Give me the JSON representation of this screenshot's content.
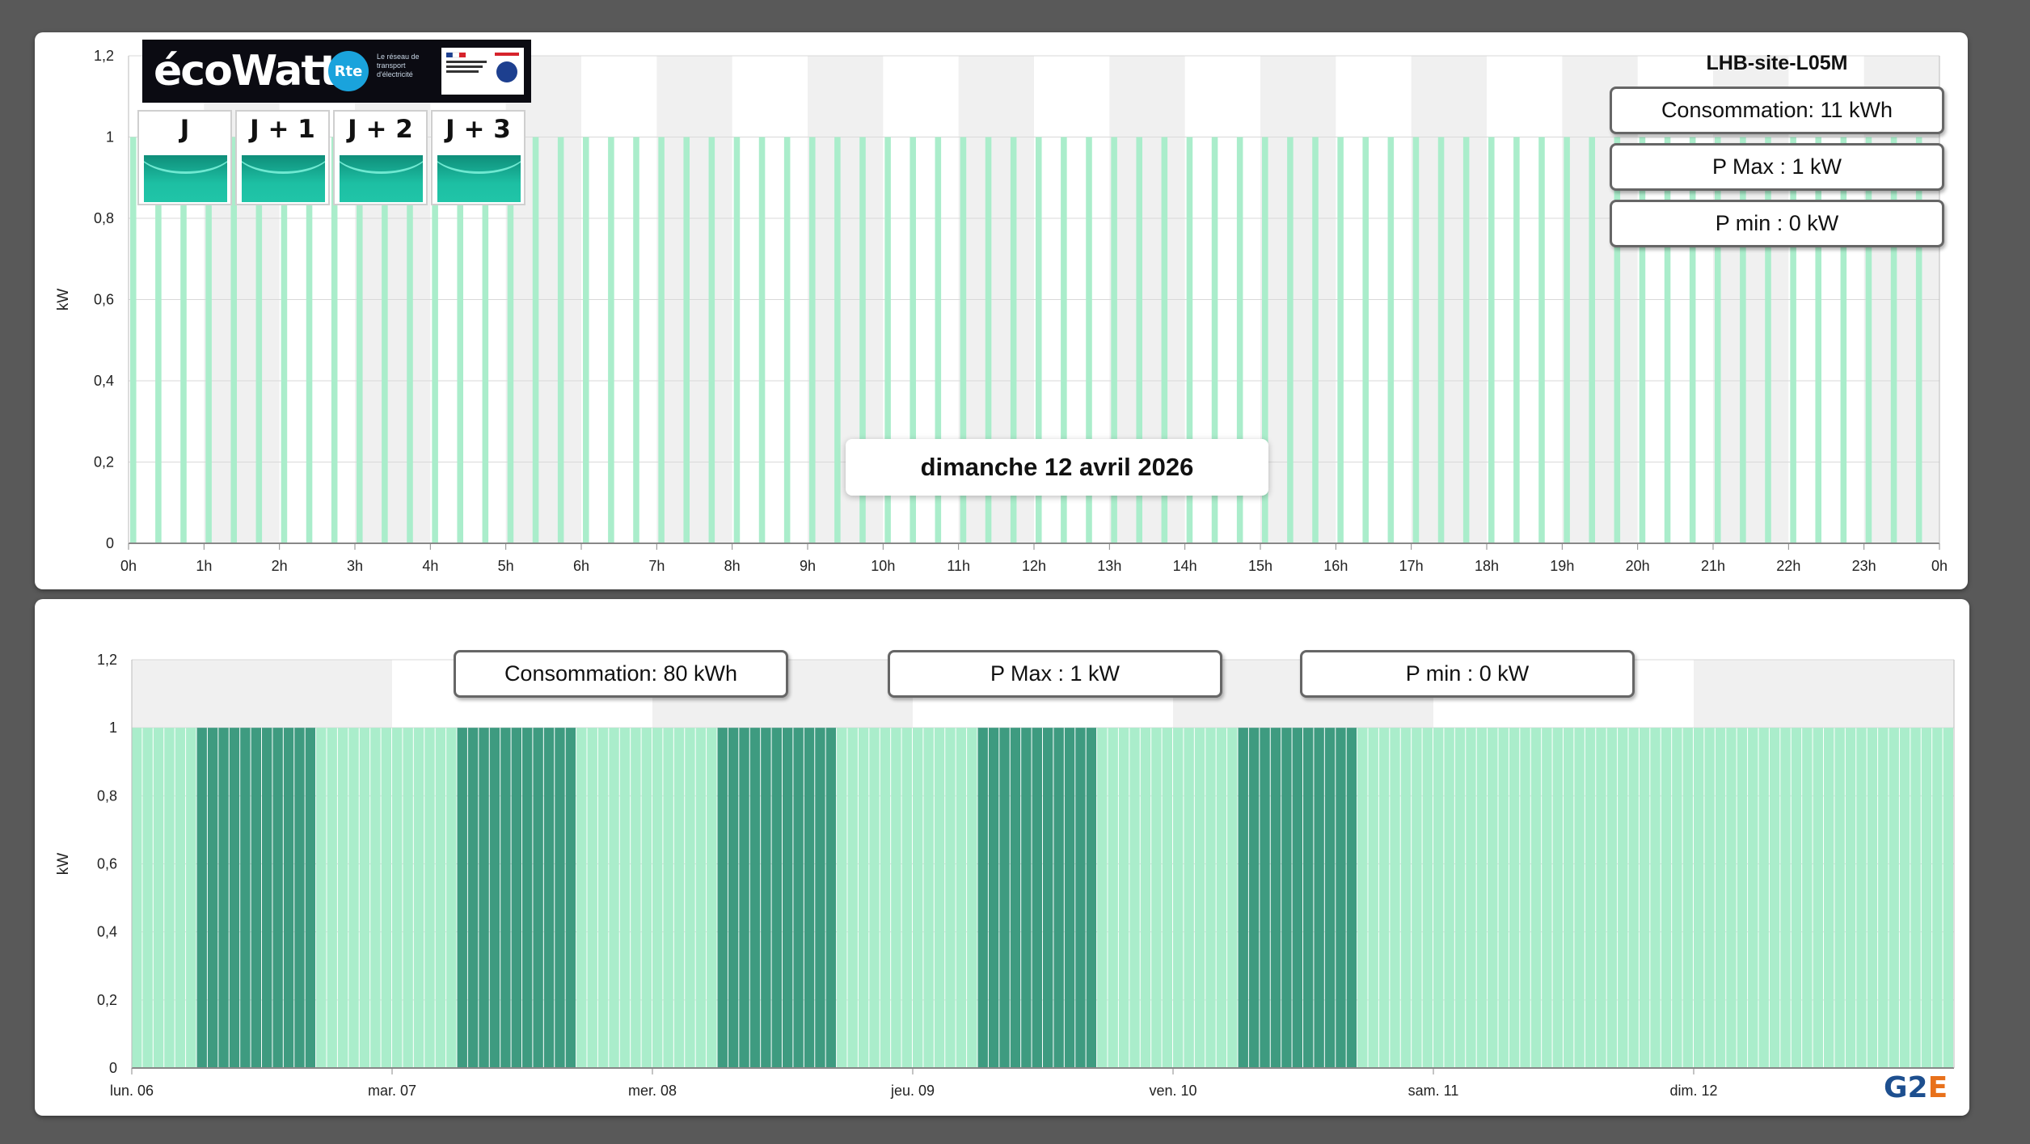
{
  "site_name": "LHB-site-L05M",
  "date_label": "dimanche 12 avril 2026",
  "ecowatt": {
    "logo_text": "écoWatt",
    "rte_logo": "Rte",
    "rte_text": "Le réseau de transport d'électricité",
    "days": [
      {
        "label": "J",
        "status_color": "#1dbfa3"
      },
      {
        "label": "J + 1",
        "status_color": "#1dbfa3"
      },
      {
        "label": "J + 2",
        "status_color": "#1dbfa3"
      },
      {
        "label": "J + 3",
        "status_color": "#1dbfa3"
      }
    ]
  },
  "top_stats": {
    "consommation": "Consommation: 11 kWh",
    "pmax": "P Max :  1 kW",
    "pmin": "P min : 0 kW"
  },
  "bottom_stats": {
    "consommation": "Consommation: 80 kWh",
    "pmax": "P Max :  1 kW",
    "pmin": "P min : 0 kW"
  },
  "colors": {
    "bar_light": "#aaedcb",
    "bar_dark": "#3e9b80",
    "band_gray": "#f0f0f0"
  },
  "chart_data": [
    {
      "type": "bar",
      "title": "",
      "ylabel": "kW",
      "ylim": [
        0,
        1.2
      ],
      "yticks": [
        "0",
        "0,2",
        "0,4",
        "0,6",
        "0,8",
        "1",
        "1,2"
      ],
      "x_tick_labels": [
        "0h",
        "1h",
        "2h",
        "3h",
        "4h",
        "5h",
        "6h",
        "7h",
        "8h",
        "9h",
        "10h",
        "11h",
        "12h",
        "13h",
        "14h",
        "15h",
        "16h",
        "17h",
        "18h",
        "19h",
        "20h",
        "21h",
        "22h",
        "23h",
        "0h"
      ],
      "interval_minutes": 10,
      "on_intervals_per_hour": 3,
      "value_on": 1,
      "value_off": 0,
      "grid": true
    },
    {
      "type": "bar",
      "title": "",
      "ylabel": "kW",
      "ylim": [
        0,
        1.2
      ],
      "yticks": [
        "0",
        "0,2",
        "0,4",
        "0,6",
        "0,8",
        "1",
        "1,2"
      ],
      "x_tick_labels": [
        "lun. 06",
        "mar. 07",
        "mer. 08",
        "jeu. 09",
        "ven. 10",
        "sam. 11",
        "dim. 12"
      ],
      "value": 1,
      "highlighted_days": [
        "lun. 06",
        "mar. 07",
        "mer. 08",
        "jeu. 09",
        "ven. 10"
      ],
      "highlight_start_hour": 6,
      "highlight_end_hour": 17,
      "grid": true
    }
  ]
}
